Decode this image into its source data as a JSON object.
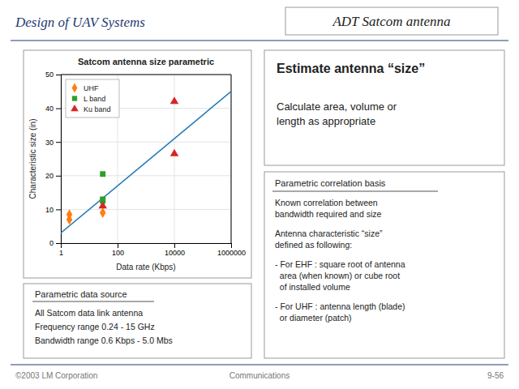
{
  "title_left": "Design of UAV Systems",
  "title_right": "ADT Satcom antenna",
  "footer_left": "©2003 LM Corporation",
  "footer_center": "Communications",
  "footer_right": "9-56",
  "left_box": {
    "title": "Parametric data source",
    "lines": [
      "All Satcom data link antenna",
      "Frequency range 0.24 - 15 GHz",
      "Bandwidth range 0.6 Kbps - 5.0 Mbs"
    ]
  },
  "right_top": {
    "title": "Estimate antenna “size”",
    "body": "Calculate area, volume or\nlength as appropriate"
  },
  "right_bottom": {
    "title": "Parametric correlation basis",
    "lines": [
      "Known correlation between\nbandwidth required and size",
      "Antenna characteristic “size”\ndefined as following:",
      "- For EHF : square root of antenna\n  area (when known) or cube root\n  of installed volume",
      "- For UHF : antenna length (blade)\n  or diameter (patch)"
    ]
  },
  "chart_data": {
    "type": "scatter",
    "title": "Satcom antenna size parametric",
    "x_label": "Data rate (Kbps)",
    "y_label": "Characteristic size (in)",
    "log": "x",
    "xlim": [
      1,
      1000000
    ],
    "xticks": [
      1,
      100,
      10000,
      1000000
    ],
    "ylim": [
      0,
      50
    ],
    "yticks": [
      0,
      10,
      20,
      30,
      40,
      50
    ],
    "grid": true,
    "legend": "upper left",
    "series": [
      {
        "type": "line",
        "line_style": "solid",
        "x": [
          1,
          1000000
        ],
        "values": [
          3,
          45
        ]
      },
      {
        "name": "UHF",
        "type": "scatter",
        "marker": "diamond",
        "x": [
          2,
          2,
          30
        ],
        "values": [
          7,
          8.5,
          9
        ]
      },
      {
        "name": "L band",
        "type": "scatter",
        "marker": "square",
        "x": [
          30,
          30,
          30
        ],
        "values": [
          20.5,
          12.5,
          13
        ]
      },
      {
        "name": "Ku band",
        "type": "scatter",
        "marker": "triangle",
        "x": [
          30,
          10000,
          10000
        ],
        "values": [
          11,
          26.5,
          42
        ]
      }
    ]
  }
}
